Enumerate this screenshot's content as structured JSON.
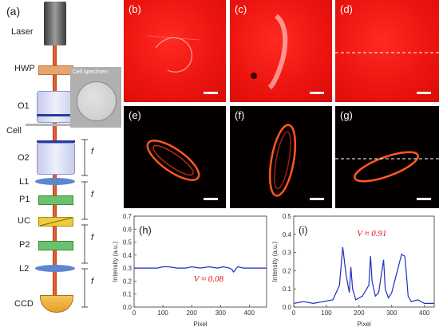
{
  "setup": {
    "panel_label": "(a)",
    "laser": "Laser",
    "hwp": "HWP",
    "o1": "O1",
    "cell": "Cell",
    "o2": "O2",
    "l1": "L1",
    "p1": "P1",
    "uc": "UC",
    "p2": "P2",
    "l2": "L2",
    "ccd": "CCD",
    "focal": "f",
    "cell_specimen": "Cell specimen"
  },
  "images": {
    "b": "(b)",
    "c": "(c)",
    "d": "(d)",
    "e": "(e)",
    "f": "(f)",
    "g": "(g)"
  },
  "chart_data": [
    {
      "type": "line",
      "panel": "(h)",
      "xlabel": "Pixel",
      "ylabel": "Intensity (a.u.)",
      "annotation": "V ≈ 0.08",
      "xlim": [
        0,
        460
      ],
      "ylim": [
        0,
        0.7
      ],
      "xticks": [
        "0",
        "100",
        "200",
        "300",
        "400"
      ],
      "yticks": [
        "0.0",
        "0.1",
        "0.2",
        "0.3",
        "0.4",
        "0.5",
        "0.6",
        "0.7"
      ],
      "color": "#1f2fbf",
      "x": [
        0,
        40,
        80,
        100,
        120,
        150,
        180,
        200,
        230,
        260,
        290,
        310,
        330,
        340,
        345,
        350,
        355,
        360,
        380,
        420,
        460
      ],
      "y": [
        0.3,
        0.3,
        0.3,
        0.31,
        0.31,
        0.3,
        0.3,
        0.31,
        0.3,
        0.31,
        0.3,
        0.31,
        0.3,
        0.29,
        0.27,
        0.28,
        0.3,
        0.31,
        0.3,
        0.3,
        0.3
      ]
    },
    {
      "type": "line",
      "panel": "(i)",
      "xlabel": "Pixel",
      "ylabel": "Intensity (a.u.)",
      "annotation": "V ≈ 0.91",
      "xlim": [
        0,
        430
      ],
      "ylim": [
        0,
        0.5
      ],
      "xticks": [
        "0",
        "100",
        "200",
        "300",
        "400"
      ],
      "yticks": [
        "0.0",
        "0.1",
        "0.2",
        "0.3",
        "0.4",
        "0.5"
      ],
      "color": "#1f2fbf",
      "x": [
        0,
        30,
        60,
        90,
        120,
        140,
        150,
        160,
        170,
        175,
        180,
        190,
        210,
        230,
        235,
        240,
        250,
        260,
        270,
        275,
        280,
        290,
        300,
        320,
        330,
        340,
        345,
        350,
        360,
        380,
        400,
        430
      ],
      "y": [
        0.02,
        0.03,
        0.02,
        0.03,
        0.04,
        0.12,
        0.33,
        0.18,
        0.08,
        0.22,
        0.1,
        0.04,
        0.06,
        0.12,
        0.28,
        0.14,
        0.06,
        0.08,
        0.2,
        0.26,
        0.1,
        0.05,
        0.08,
        0.22,
        0.29,
        0.28,
        0.18,
        0.06,
        0.03,
        0.04,
        0.02,
        0.02
      ]
    }
  ]
}
